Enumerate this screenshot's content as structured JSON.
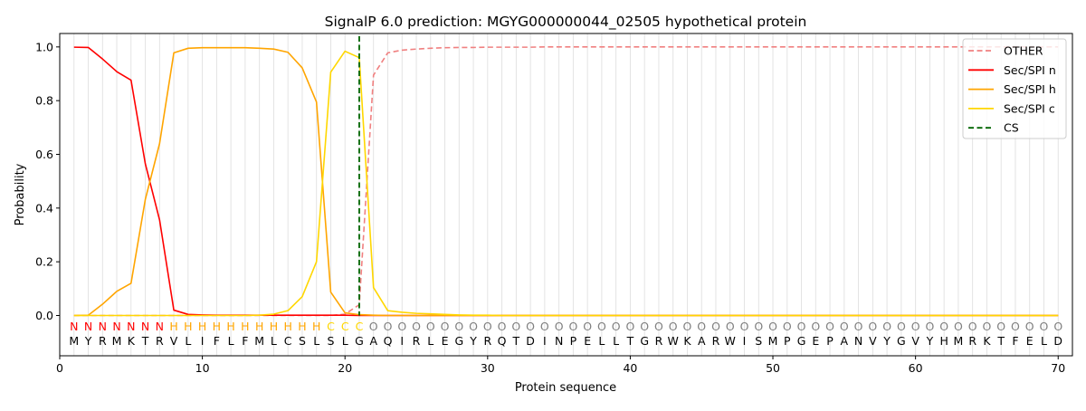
{
  "chart_data": {
    "type": "line",
    "title": "SignalP 6.0 prediction: MGYG000000044_02505 hypothetical protein",
    "xlabel": "Protein sequence",
    "ylabel": "Probability",
    "xlim": [
      0,
      71
    ],
    "ylim": [
      -0.15,
      1.05
    ],
    "x_ticks": [
      0,
      10,
      20,
      30,
      40,
      50,
      60,
      70
    ],
    "y_ticks": [
      0.0,
      0.2,
      0.4,
      0.6,
      0.8,
      1.0
    ],
    "x_tick_labels": [
      "0",
      "10",
      "20",
      "30",
      "40",
      "50",
      "60",
      "70"
    ],
    "y_tick_labels": [
      "0.0",
      "0.2",
      "0.4",
      "0.6",
      "0.8",
      "1.0"
    ],
    "grid": "vertical lines at each residue position",
    "legend_position": "top-right",
    "sequence": [
      "M",
      "Y",
      "R",
      "M",
      "K",
      "T",
      "R",
      "V",
      "L",
      "I",
      "F",
      "L",
      "F",
      "M",
      "L",
      "C",
      "S",
      "L",
      "S",
      "L",
      "G",
      "A",
      "Q",
      "I",
      "R",
      "L",
      "E",
      "G",
      "Y",
      "R",
      "Q",
      "T",
      "D",
      "I",
      "N",
      "P",
      "E",
      "L",
      "L",
      "T",
      "G",
      "R",
      "W",
      "K",
      "A",
      "R",
      "W",
      "I",
      "S",
      "M",
      "P",
      "G",
      "E",
      "P",
      "A",
      "N",
      "V",
      "Y",
      "G",
      "V",
      "Y",
      "H",
      "M",
      "R",
      "K",
      "T",
      "F",
      "E",
      "L",
      "D"
    ],
    "region_labels": [
      "N",
      "N",
      "N",
      "N",
      "N",
      "N",
      "N",
      "H",
      "H",
      "H",
      "H",
      "H",
      "H",
      "H",
      "H",
      "H",
      "H",
      "H",
      "C",
      "C",
      "C",
      "O",
      "O",
      "O",
      "O",
      "O",
      "O",
      "O",
      "O",
      "O",
      "O",
      "O",
      "O",
      "O",
      "O",
      "O",
      "O",
      "O",
      "O",
      "O",
      "O",
      "O",
      "O",
      "O",
      "O",
      "O",
      "O",
      "O",
      "O",
      "O",
      "O",
      "O",
      "O",
      "O",
      "O",
      "O",
      "O",
      "O",
      "O",
      "O",
      "O",
      "O",
      "O",
      "O",
      "O",
      "O",
      "O",
      "O",
      "O",
      "O"
    ],
    "region_colors": {
      "N": "#ff0000",
      "H": "#ffa500",
      "C": "#ffd700",
      "O": "#808080"
    },
    "cleavage_site": 21,
    "series": [
      {
        "name": "OTHER",
        "color": "#f08080",
        "dash": "dashed",
        "x": [
          1,
          2,
          3,
          4,
          5,
          6,
          7,
          8,
          9,
          10,
          11,
          12,
          13,
          14,
          15,
          16,
          17,
          18,
          19,
          20,
          21,
          22,
          23,
          24,
          25,
          26,
          27,
          28,
          29,
          30,
          31,
          32,
          33,
          34,
          35,
          36,
          37,
          38,
          39,
          40,
          41,
          42,
          43,
          44,
          45,
          46,
          47,
          48,
          49,
          50,
          51,
          52,
          53,
          54,
          55,
          56,
          57,
          58,
          59,
          60,
          61,
          62,
          63,
          64,
          65,
          66,
          67,
          68,
          69,
          70
        ],
        "values": [
          0,
          0,
          0,
          0,
          0,
          0,
          0,
          0,
          0,
          0,
          0,
          0,
          0,
          0,
          0,
          0,
          0,
          0,
          0,
          0.005,
          0.04,
          0.895,
          0.978,
          0.988,
          0.992,
          0.995,
          0.997,
          0.998,
          0.998,
          0.999,
          0.999,
          0.999,
          0.999,
          1,
          1,
          1,
          1,
          1,
          1,
          1,
          1,
          1,
          1,
          1,
          1,
          1,
          1,
          1,
          1,
          1,
          1,
          1,
          1,
          1,
          1,
          1,
          1,
          1,
          1,
          1,
          1,
          1,
          1,
          1,
          1,
          1,
          1,
          1,
          1,
          1
        ]
      },
      {
        "name": "Sec/SPI n",
        "color": "#ff0000",
        "dash": "solid",
        "x": [
          1,
          2,
          3,
          4,
          5,
          6,
          7,
          8,
          9,
          10,
          11,
          12,
          13,
          14,
          15,
          16,
          17,
          18,
          19,
          20,
          21,
          22,
          23,
          24,
          25,
          26,
          27,
          28,
          29,
          30,
          31,
          32,
          33,
          34,
          35,
          36,
          37,
          38,
          39,
          40,
          41,
          42,
          43,
          44,
          45,
          46,
          47,
          48,
          49,
          50,
          51,
          52,
          53,
          54,
          55,
          56,
          57,
          58,
          59,
          60,
          61,
          62,
          63,
          64,
          65,
          66,
          67,
          68,
          69,
          70
        ],
        "values": [
          0.999,
          0.998,
          0.955,
          0.908,
          0.876,
          0.565,
          0.356,
          0.02,
          0.004,
          0.002,
          0.001,
          0.001,
          0.001,
          0.001,
          0.001,
          0.001,
          0.001,
          0.001,
          0.001,
          0.001,
          0,
          0,
          0,
          0,
          0,
          0,
          0,
          0,
          0,
          0,
          0,
          0,
          0,
          0,
          0,
          0,
          0,
          0,
          0,
          0,
          0,
          0,
          0,
          0,
          0,
          0,
          0,
          0,
          0,
          0,
          0,
          0,
          0,
          0,
          0,
          0,
          0,
          0,
          0,
          0,
          0,
          0,
          0,
          0,
          0,
          0,
          0,
          0,
          0,
          0
        ]
      },
      {
        "name": "Sec/SPI h",
        "color": "#ffa500",
        "dash": "solid",
        "x": [
          1,
          2,
          3,
          4,
          5,
          6,
          7,
          8,
          9,
          10,
          11,
          12,
          13,
          14,
          15,
          16,
          17,
          18,
          19,
          20,
          21,
          22,
          23,
          24,
          25,
          26,
          27,
          28,
          29,
          30,
          31,
          32,
          33,
          34,
          35,
          36,
          37,
          38,
          39,
          40,
          41,
          42,
          43,
          44,
          45,
          46,
          47,
          48,
          49,
          50,
          51,
          52,
          53,
          54,
          55,
          56,
          57,
          58,
          59,
          60,
          61,
          62,
          63,
          64,
          65,
          66,
          67,
          68,
          69,
          70
        ],
        "values": [
          0,
          0.001,
          0.042,
          0.09,
          0.12,
          0.432,
          0.64,
          0.978,
          0.995,
          0.997,
          0.997,
          0.997,
          0.997,
          0.995,
          0.992,
          0.98,
          0.922,
          0.795,
          0.087,
          0.01,
          0.003,
          0.001,
          0,
          0,
          0,
          0,
          0,
          0,
          0,
          0,
          0,
          0,
          0,
          0,
          0,
          0,
          0,
          0,
          0,
          0,
          0,
          0,
          0,
          0,
          0,
          0,
          0,
          0,
          0,
          0,
          0,
          0,
          0,
          0,
          0,
          0,
          0,
          0,
          0,
          0,
          0,
          0,
          0,
          0,
          0,
          0,
          0,
          0,
          0,
          0
        ]
      },
      {
        "name": "Sec/SPI c",
        "color": "#ffd700",
        "dash": "solid",
        "x": [
          1,
          2,
          3,
          4,
          5,
          6,
          7,
          8,
          9,
          10,
          11,
          12,
          13,
          14,
          15,
          16,
          17,
          18,
          19,
          20,
          21,
          22,
          23,
          24,
          25,
          26,
          27,
          28,
          29,
          30,
          31,
          32,
          33,
          34,
          35,
          36,
          37,
          38,
          39,
          40,
          41,
          42,
          43,
          44,
          45,
          46,
          47,
          48,
          49,
          50,
          51,
          52,
          53,
          54,
          55,
          56,
          57,
          58,
          59,
          60,
          61,
          62,
          63,
          64,
          65,
          66,
          67,
          68,
          69,
          70
        ],
        "values": [
          0,
          0,
          0,
          0,
          0,
          0,
          0,
          0,
          0,
          0,
          0,
          0,
          0,
          0.001,
          0.005,
          0.018,
          0.07,
          0.2,
          0.906,
          0.984,
          0.96,
          0.104,
          0.018,
          0.012,
          0.008,
          0.006,
          0.004,
          0.002,
          0.001,
          0.001,
          0,
          0,
          0,
          0,
          0,
          0,
          0,
          0,
          0,
          0,
          0,
          0,
          0,
          0,
          0,
          0,
          0,
          0,
          0,
          0,
          0,
          0,
          0,
          0,
          0,
          0,
          0,
          0,
          0,
          0,
          0,
          0,
          0,
          0,
          0,
          0,
          0,
          0,
          0,
          0
        ]
      }
    ],
    "legend": [
      {
        "label": "OTHER",
        "color": "#f08080",
        "dash": "dashed"
      },
      {
        "label": "Sec/SPI n",
        "color": "#ff0000",
        "dash": "solid"
      },
      {
        "label": "Sec/SPI h",
        "color": "#ffa500",
        "dash": "solid"
      },
      {
        "label": "Sec/SPI c",
        "color": "#ffd700",
        "dash": "solid"
      },
      {
        "label": "CS",
        "color": "#006400",
        "dash": "dashed"
      }
    ]
  }
}
